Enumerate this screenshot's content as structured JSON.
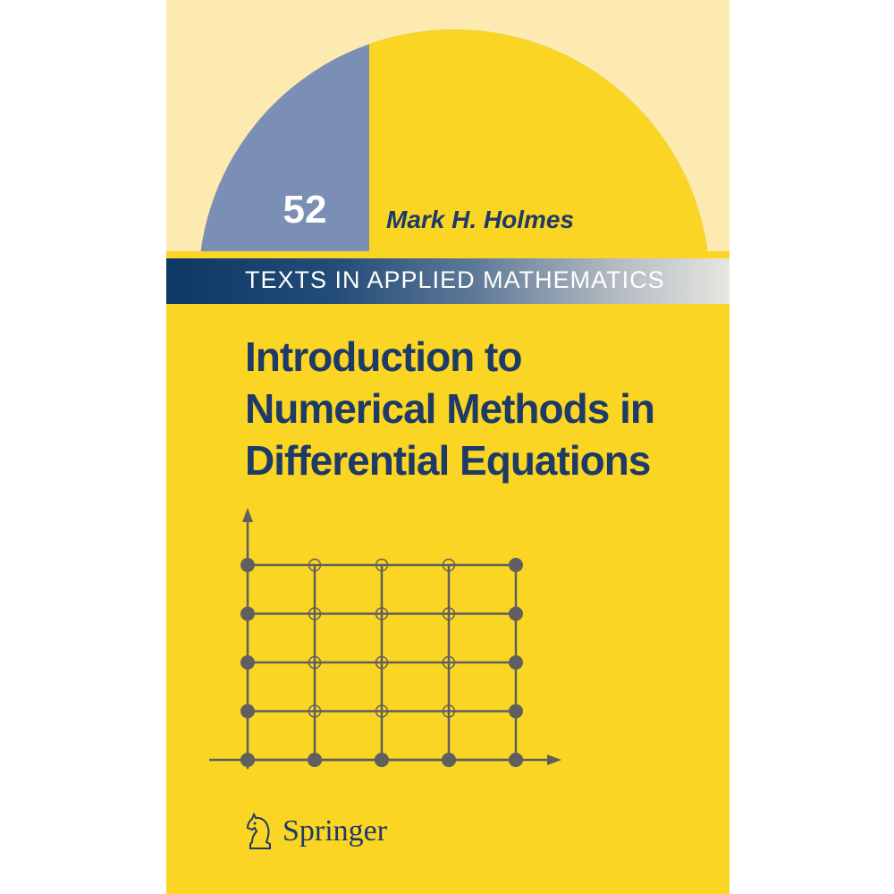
{
  "series": {
    "number": "52",
    "name": "TEXTS IN APPLIED MATHEMATICS"
  },
  "author": "Mark H. Holmes",
  "title_lines": [
    "Introduction to",
    "Numerical Methods in",
    "Differential Equations"
  ],
  "publisher": {
    "name": "Springer",
    "logo_icon": "knight-chess-piece-icon"
  },
  "colors": {
    "cover_yellow": "#fbd523",
    "pale_band": "#fceab0",
    "arc_blue": "#7b8fb6",
    "navy_text": "#1e3a66",
    "grid_gray": "#5f5f5f"
  },
  "figure": {
    "type": "grid-nodes",
    "rows": 5,
    "cols": 5,
    "node_style": "filled on left column, right column and bottom row; hollow in interior"
  }
}
